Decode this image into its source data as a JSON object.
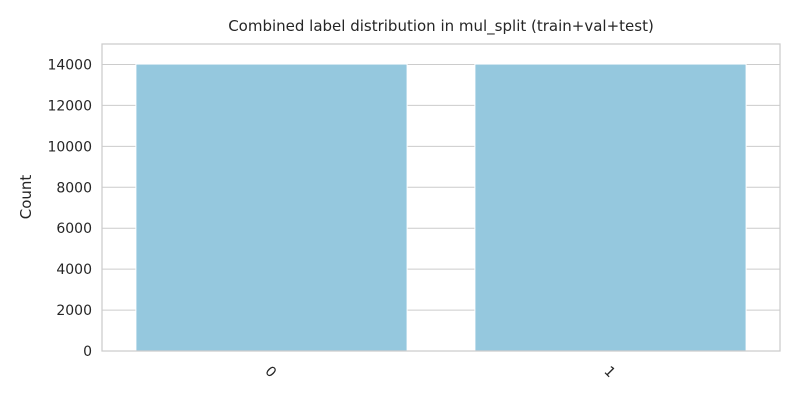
{
  "chart_data": {
    "type": "bar",
    "title": "Combined label distribution in mul_split (train+val+test)",
    "xlabel": "",
    "ylabel": "Count",
    "categories": [
      "0",
      "1"
    ],
    "values": [
      14020,
      14020
    ],
    "ylim": [
      0,
      15000
    ],
    "yticks": [
      0,
      2000,
      4000,
      6000,
      8000,
      10000,
      12000,
      14000
    ],
    "bar_color": "#95c8de",
    "grid": true,
    "legend": "none"
  }
}
